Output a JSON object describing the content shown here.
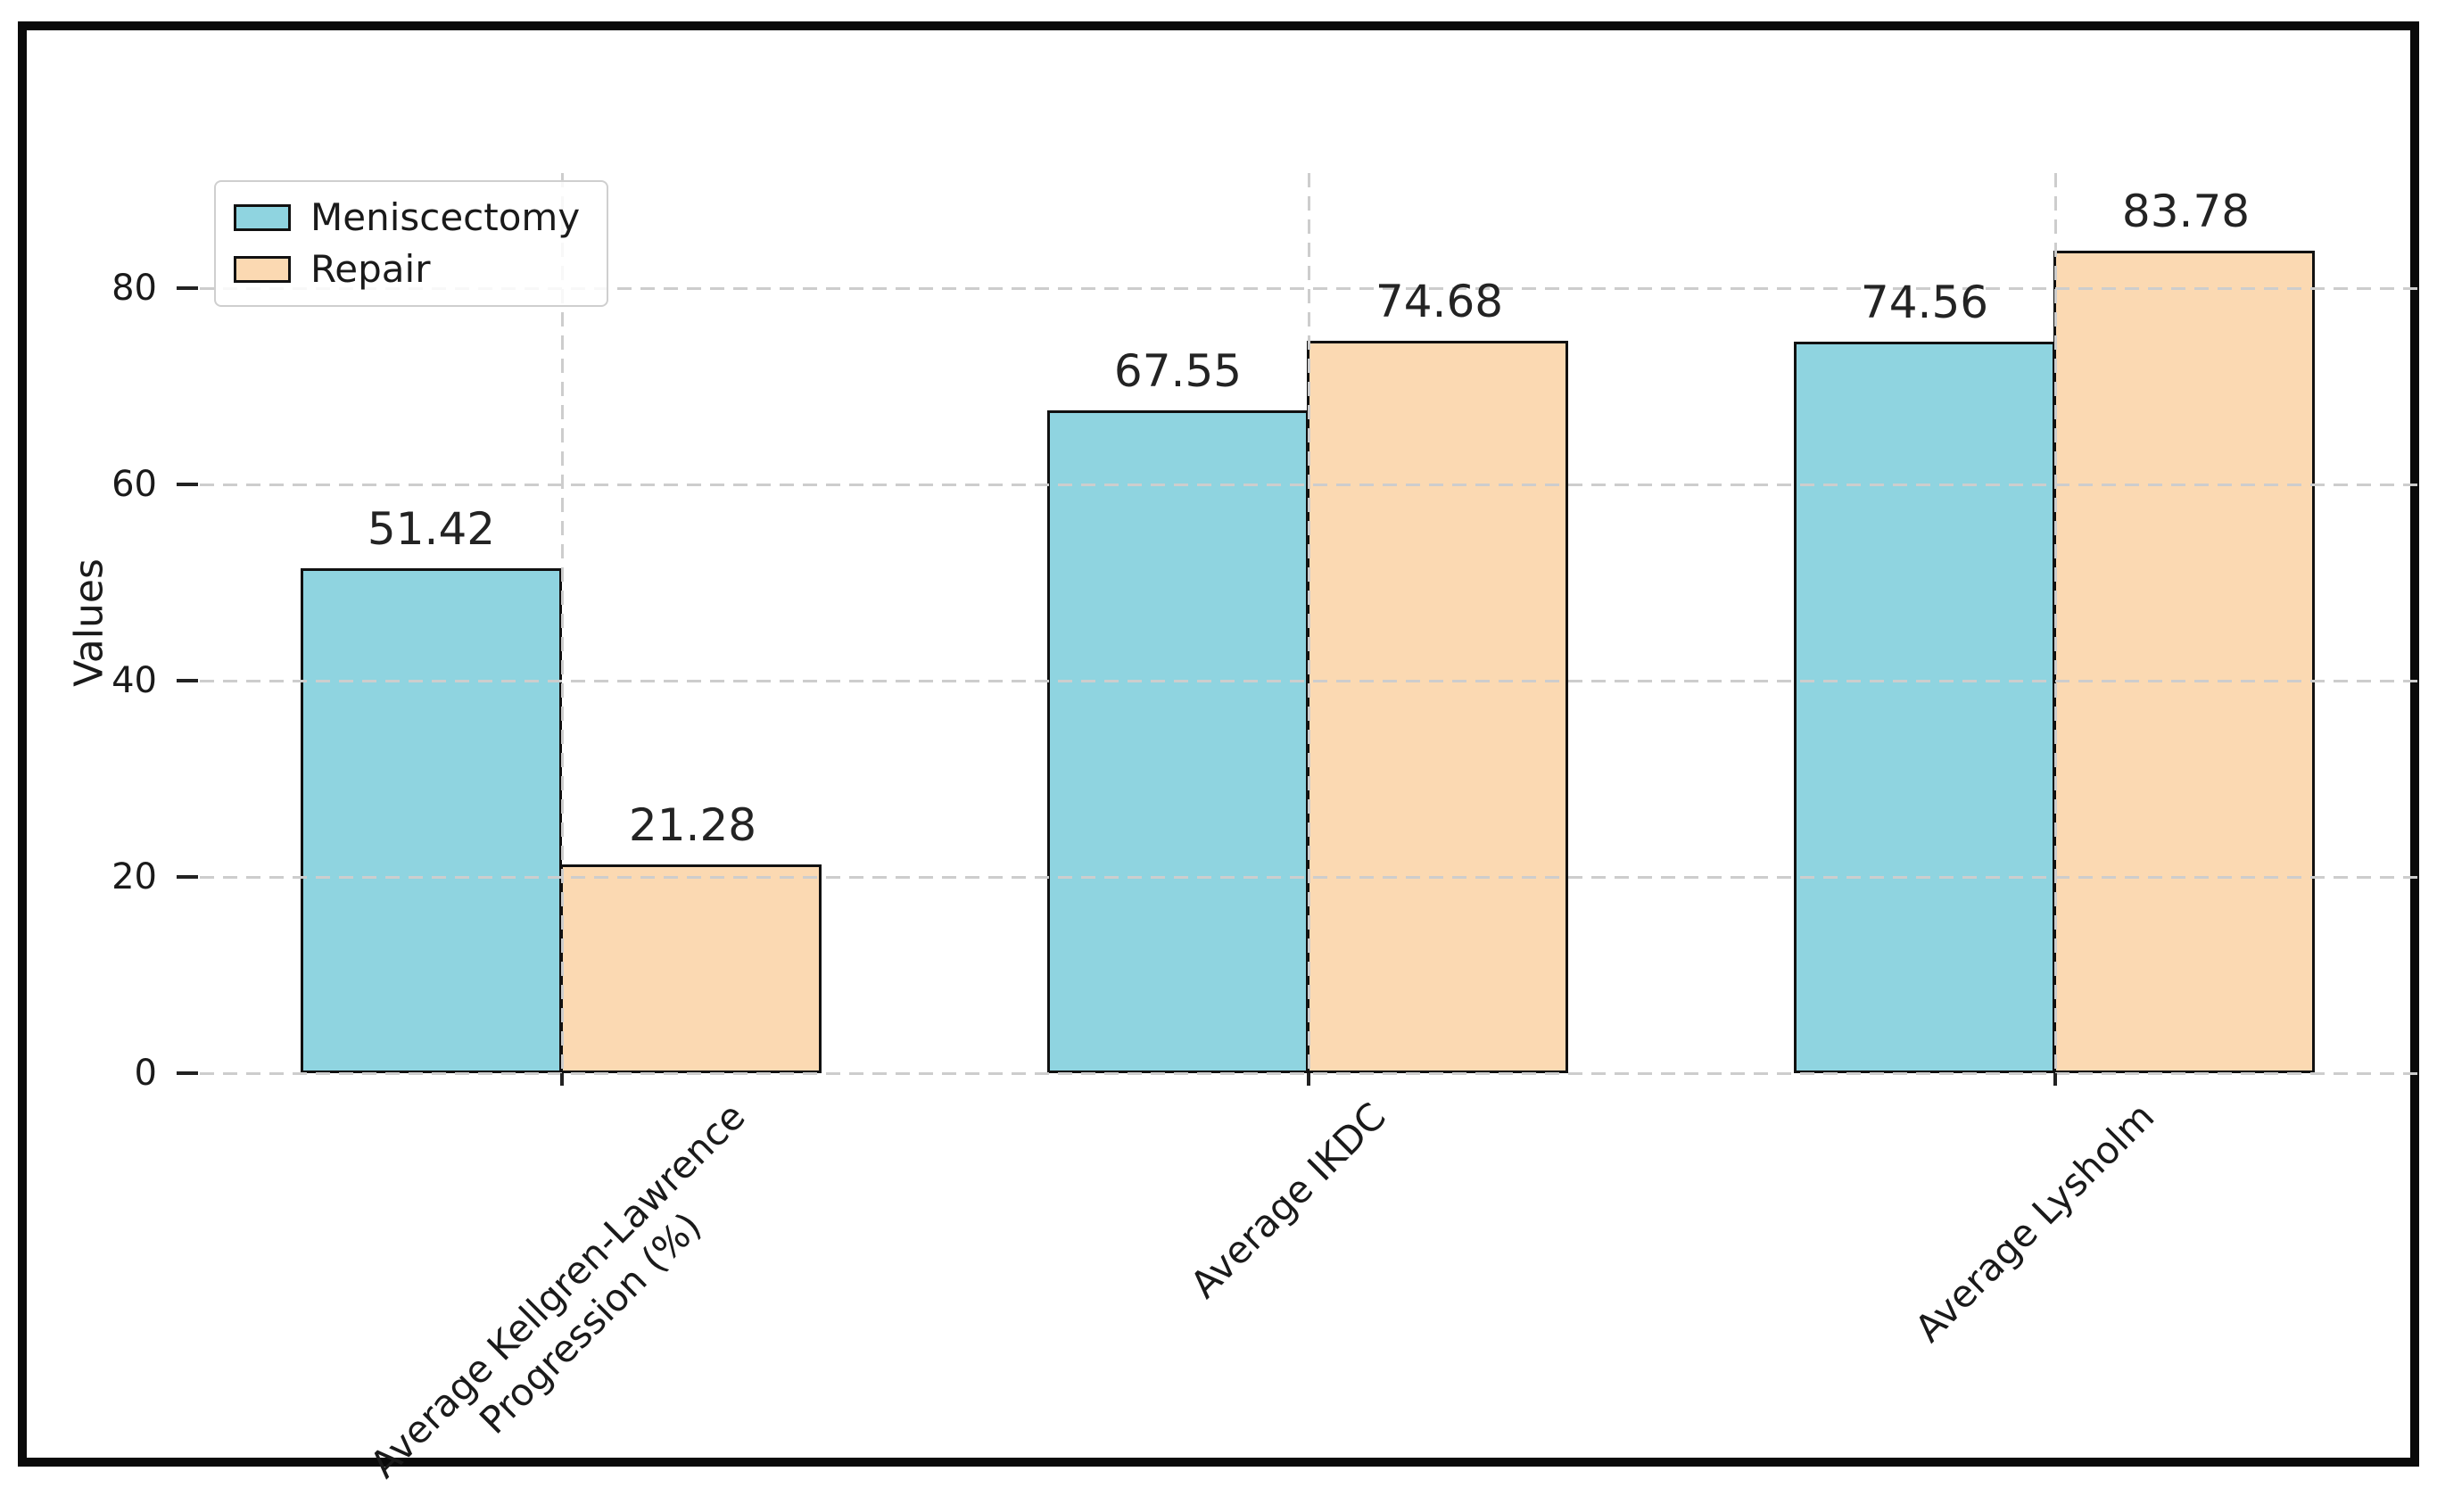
{
  "frame": {
    "background": "#ffffff",
    "border_color": "#0a0a0a"
  },
  "chart_data": {
    "type": "bar",
    "title": "",
    "xlabel": "",
    "ylabel": "Values",
    "categories": [
      "Average Kellgren-Lawrence\nProgression (%)",
      "Average IKDC",
      "Average Lysholm"
    ],
    "series": [
      {
        "name": "Meniscectomy",
        "color": "#8fd4e0",
        "values": [
          51.42,
          67.55,
          74.56
        ]
      },
      {
        "name": "Repair",
        "color": "#fbd9b2",
        "values": [
          21.28,
          74.68,
          83.78
        ]
      }
    ],
    "value_labels": [
      [
        "51.42",
        "67.55",
        "74.56"
      ],
      [
        "21.28",
        "74.68",
        "83.78"
      ]
    ],
    "yticks": [
      0,
      20,
      40,
      60,
      80
    ],
    "ylim": [
      0,
      92
    ],
    "grid": {
      "style": "dashed",
      "color": "#cdcdcd",
      "on_top_of_bars": true
    },
    "bar_edge_color": "#111111",
    "legend": {
      "position": "upper-left"
    }
  }
}
